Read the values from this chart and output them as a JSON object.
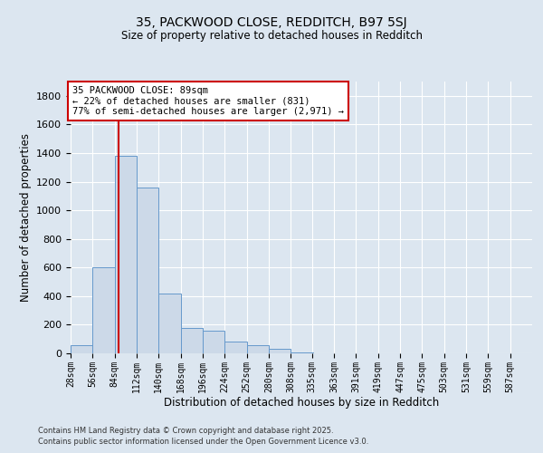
{
  "title_line1": "35, PACKWOOD CLOSE, REDDITCH, B97 5SJ",
  "title_line2": "Size of property relative to detached houses in Redditch",
  "xlabel": "Distribution of detached houses by size in Redditch",
  "ylabel": "Number of detached properties",
  "bin_labels": [
    "28sqm",
    "56sqm",
    "84sqm",
    "112sqm",
    "140sqm",
    "168sqm",
    "196sqm",
    "224sqm",
    "252sqm",
    "280sqm",
    "308sqm",
    "335sqm",
    "363sqm",
    "391sqm",
    "419sqm",
    "447sqm",
    "475sqm",
    "503sqm",
    "531sqm",
    "559sqm",
    "587sqm"
  ],
  "bin_edges": [
    28,
    56,
    84,
    112,
    140,
    168,
    196,
    224,
    252,
    280,
    308,
    335,
    363,
    391,
    419,
    447,
    475,
    503,
    531,
    559,
    587
  ],
  "bar_values": [
    60,
    600,
    1380,
    1160,
    420,
    180,
    160,
    80,
    55,
    30,
    5,
    0,
    0,
    0,
    0,
    0,
    0,
    0,
    0,
    0
  ],
  "bar_facecolor": "#ccd9e8",
  "bar_edgecolor": "#6699cc",
  "background_color": "#dce6f0",
  "grid_color": "#ffffff",
  "property_line_x": 89,
  "property_line_color": "#cc0000",
  "annotation_line1": "35 PACKWOOD CLOSE: 89sqm",
  "annotation_line2": "← 22% of detached houses are smaller (831)",
  "annotation_line3": "77% of semi-detached houses are larger (2,971) →",
  "annotation_box_facecolor": "#ffffff",
  "annotation_box_edgecolor": "#cc0000",
  "ylim": [
    0,
    1900
  ],
  "yticks": [
    0,
    200,
    400,
    600,
    800,
    1000,
    1200,
    1400,
    1600,
    1800
  ],
  "footer_line1": "Contains HM Land Registry data © Crown copyright and database right 2025.",
  "footer_line2": "Contains public sector information licensed under the Open Government Licence v3.0."
}
